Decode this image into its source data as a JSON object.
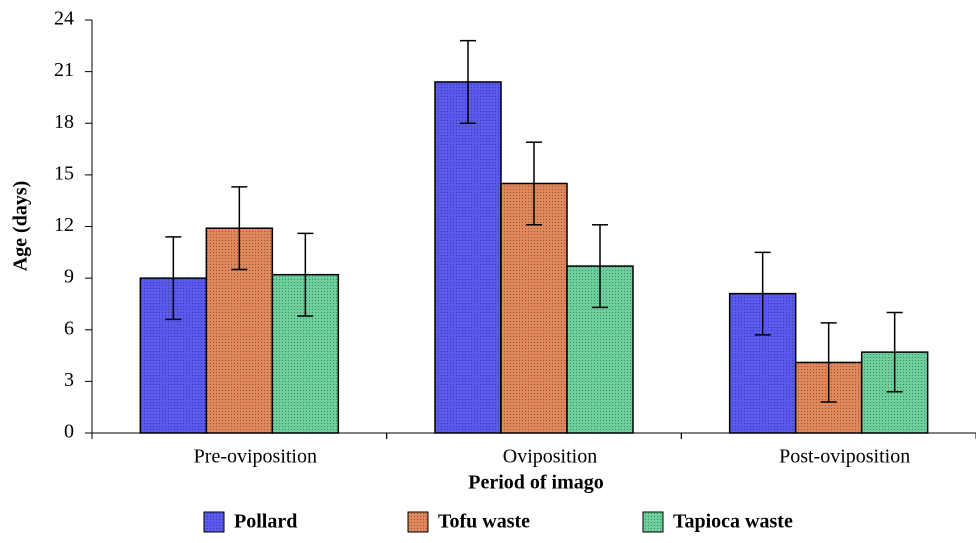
{
  "chart_data": {
    "type": "bar",
    "x_label": "Period of imago",
    "y_label": "Age (days)",
    "categories": [
      "Pre-oviposition",
      "Oviposition",
      "Post-oviposition"
    ],
    "series": [
      {
        "name": "Pollard",
        "color": "#5a5af0",
        "values": [
          9.0,
          20.4,
          8.1
        ],
        "errors": [
          2.4,
          2.4,
          2.4
        ]
      },
      {
        "name": "Tofu waste",
        "color": "#e0885c",
        "values": [
          11.9,
          14.5,
          4.1
        ],
        "errors": [
          2.4,
          2.4,
          2.3
        ]
      },
      {
        "name": "Tapioca waste",
        "color": "#6ccf9c",
        "values": [
          9.2,
          9.7,
          4.7
        ],
        "errors": [
          2.4,
          2.4,
          2.3
        ]
      }
    ],
    "ylim": [
      0,
      24
    ],
    "yticks": [
      0,
      3,
      6,
      9,
      12,
      15,
      18,
      21,
      24
    ],
    "legend": "bottom"
  }
}
